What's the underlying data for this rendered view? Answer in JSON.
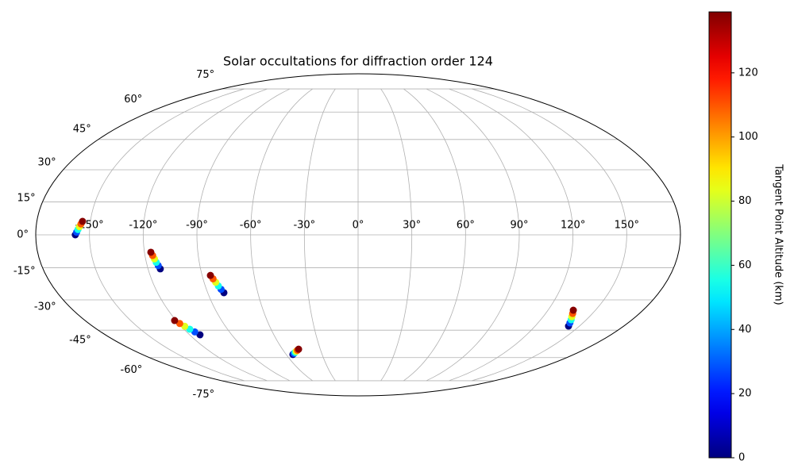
{
  "chart_data": {
    "type": "scatter",
    "projection": "mollweide",
    "title": "Solar occultations for diffraction order 124",
    "x": [
      -157.9,
      -157.2,
      -156.5,
      -155.8,
      -155.1,
      -154.4,
      -113.0,
      -113.7,
      -114.4,
      -115.0,
      -115.7,
      -116.4,
      -80.3,
      -81.3,
      -82.3,
      -83.2,
      -84.2,
      -85.2,
      -112.6,
      -114.3,
      -116.0,
      -117.6,
      -119.3,
      -121.0,
      -54.4,
      -53.0,
      -51.5,
      -50.1,
      -48.6,
      -47.2,
      142.6,
      141.3,
      140.0,
      138.6,
      137.3,
      136.0
    ],
    "y": [
      0,
      1.2,
      2.4,
      3.7,
      4.9,
      6.1,
      -15.5,
      -14.0,
      -12.5,
      -10.9,
      -9.4,
      -7.9,
      -26.6,
      -25.0,
      -23.4,
      -21.7,
      -20.1,
      -18.5,
      -47.4,
      -45.9,
      -44.5,
      -43.0,
      -41.6,
      -40.1,
      -58.2,
      -57.6,
      -57.0,
      -56.4,
      -55.8,
      -55.2,
      -42.9,
      -41.3,
      -39.7,
      -38.2,
      -36.6,
      -35.0
    ],
    "c": [
      0,
      28,
      55,
      83,
      110,
      138,
      0,
      28,
      55,
      83,
      110,
      138,
      0,
      28,
      55,
      83,
      110,
      138,
      0,
      28,
      55,
      83,
      110,
      138,
      0,
      28,
      55,
      83,
      110,
      138,
      0,
      28,
      55,
      83,
      110,
      138
    ],
    "colormap": "jet",
    "clim": [
      0,
      139
    ],
    "colorbar_label": "Tangent Point Altitude (km)",
    "colorbar_ticks": [
      0,
      20,
      40,
      60,
      80,
      100,
      120
    ],
    "xticks": [
      {
        "value": -150,
        "label": "-150°"
      },
      {
        "value": -120,
        "label": "-120°"
      },
      {
        "value": -90,
        "label": "-90°"
      },
      {
        "value": -60,
        "label": "-60°"
      },
      {
        "value": -30,
        "label": "-30°"
      },
      {
        "value": 0,
        "label": "0°"
      },
      {
        "value": 30,
        "label": "30°"
      },
      {
        "value": 60,
        "label": "60°"
      },
      {
        "value": 90,
        "label": "90°"
      },
      {
        "value": 120,
        "label": "120°"
      },
      {
        "value": 150,
        "label": "150°"
      }
    ],
    "yticks": [
      {
        "value": -75,
        "label": "-75°"
      },
      {
        "value": -60,
        "label": "-60°"
      },
      {
        "value": -45,
        "label": "-45°"
      },
      {
        "value": -30,
        "label": "-30°"
      },
      {
        "value": -15,
        "label": "-15°"
      },
      {
        "value": 0,
        "label": "0°"
      },
      {
        "value": 15,
        "label": "15°"
      },
      {
        "value": 30,
        "label": "30°"
      },
      {
        "value": 45,
        "label": "45°"
      },
      {
        "value": 60,
        "label": "60°"
      },
      {
        "value": 75,
        "label": "75°"
      }
    ],
    "grid": true
  }
}
